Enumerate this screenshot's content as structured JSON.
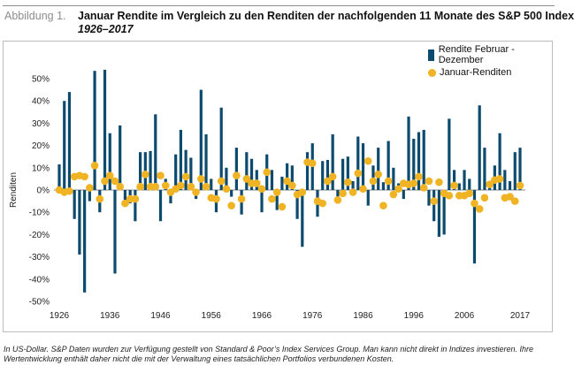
{
  "header": {
    "figure_label": "Abbildung 1.",
    "title": "Januar Rendite im Vergleich zu den Renditen der nachfolgenden 11 Monate des S&P 500 Index",
    "subtitle": "1926–2017"
  },
  "footnote": "In US-Dollar. S&P Daten wurden zur Verfügung gestellt von Standard & Poor’s Index Services Group. Man kann nicht direkt in Indizes investieren. Ihre Wertentwicklung enthält daher nicht die mit der Verwaltung eines tatsächlichen Portfolios verbundenen Kosten.",
  "colors": {
    "bars": "#0c4a6e",
    "dots": "#f0b323",
    "zero_line": "#8a8a8a"
  },
  "chart_data": {
    "type": "bar",
    "ylabel": "Renditen",
    "xlabel": "",
    "ylim": [
      -50,
      50
    ],
    "yticks": [
      "50%",
      "40%",
      "30%",
      "20%",
      "10%",
      "0%",
      "-10%",
      "-20%",
      "-30%",
      "-40%",
      "-50%"
    ],
    "xticks": [
      "1926",
      "1936",
      "1946",
      "1956",
      "1966",
      "1976",
      "1986",
      "1996",
      "2006",
      "2017"
    ],
    "legend_position": "top-right",
    "grid": false,
    "series": [
      {
        "name": "Rendite Februar - Dezember",
        "kind": "bar",
        "x": [
          1926,
          1927,
          1928,
          1929,
          1930,
          1931,
          1932,
          1933,
          1934,
          1935,
          1936,
          1937,
          1938,
          1939,
          1940,
          1941,
          1942,
          1943,
          1944,
          1945,
          1946,
          1947,
          1948,
          1949,
          1950,
          1951,
          1952,
          1953,
          1954,
          1955,
          1956,
          1957,
          1958,
          1959,
          1960,
          1961,
          1962,
          1963,
          1964,
          1965,
          1966,
          1967,
          1968,
          1969,
          1970,
          1971,
          1972,
          1973,
          1974,
          1975,
          1976,
          1977,
          1978,
          1979,
          1980,
          1981,
          1982,
          1983,
          1984,
          1985,
          1986,
          1987,
          1988,
          1989,
          1990,
          1991,
          1992,
          1993,
          1994,
          1995,
          1996,
          1997,
          1998,
          1999,
          2000,
          2001,
          2002,
          2003,
          2004,
          2005,
          2006,
          2007,
          2008,
          2009,
          2010,
          2011,
          2012,
          2013,
          2014,
          2015,
          2016,
          2017
        ],
        "values": [
          11.5,
          40,
          44,
          -13,
          -29,
          -46,
          -5,
          53.5,
          -10,
          54,
          25.5,
          -37.5,
          29,
          -5,
          -6,
          -14,
          17,
          17,
          17.5,
          34,
          -14,
          5,
          -6,
          16,
          27,
          18,
          14.5,
          -4,
          45,
          25,
          5,
          -10,
          37,
          10,
          -3,
          19,
          -11,
          17,
          14,
          9,
          -10,
          16,
          9,
          -9,
          6,
          12,
          11,
          -13,
          -25.5,
          17,
          21,
          -12,
          13,
          13.5,
          25,
          -6,
          14,
          15,
          4,
          24,
          21,
          -7,
          11,
          19,
          3.5,
          22,
          10,
          3,
          -4,
          33,
          23,
          26,
          27,
          -7,
          -14,
          -21,
          -20,
          32,
          9,
          3,
          9,
          5,
          -33,
          38,
          19,
          1,
          11,
          25.5,
          9,
          4,
          17,
          19
        ]
      },
      {
        "name": "Januar-Renditen",
        "kind": "dot",
        "x": [
          1926,
          1927,
          1928,
          1929,
          1930,
          1931,
          1932,
          1933,
          1934,
          1935,
          1936,
          1937,
          1938,
          1939,
          1940,
          1941,
          1942,
          1943,
          1944,
          1945,
          1946,
          1947,
          1948,
          1949,
          1950,
          1951,
          1952,
          1953,
          1954,
          1955,
          1956,
          1957,
          1958,
          1959,
          1960,
          1961,
          1962,
          1963,
          1964,
          1965,
          1966,
          1967,
          1968,
          1969,
          1970,
          1971,
          1972,
          1973,
          1974,
          1975,
          1976,
          1977,
          1978,
          1979,
          1980,
          1981,
          1982,
          1983,
          1984,
          1985,
          1986,
          1987,
          1988,
          1989,
          1990,
          1991,
          1992,
          1993,
          1994,
          1995,
          1996,
          1997,
          1998,
          1999,
          2000,
          2001,
          2002,
          2003,
          2004,
          2005,
          2006,
          2007,
          2008,
          2009,
          2010,
          2011,
          2012,
          2013,
          2014,
          2015,
          2016,
          2017
        ],
        "values": [
          0,
          -1,
          -0.5,
          6,
          6.5,
          6,
          1,
          11,
          -4,
          4,
          6.5,
          4,
          1.5,
          -6,
          -4,
          -4,
          1.5,
          7,
          1.5,
          1.5,
          6.5,
          2,
          -1,
          0.5,
          2,
          6,
          1.5,
          -1,
          5,
          1.5,
          -3.5,
          -4,
          4,
          0.5,
          -7,
          6.5,
          -4,
          5,
          3,
          3,
          0.5,
          8,
          -4,
          -1,
          -7.5,
          4,
          2,
          -2,
          -1,
          12.5,
          12,
          -5,
          -6,
          4,
          6,
          -4.5,
          -1.5,
          3.5,
          -1,
          7.5,
          0.5,
          13,
          4,
          7,
          -7,
          4,
          -2,
          0.5,
          3,
          2.5,
          3,
          6,
          1,
          4,
          -5,
          3.5,
          -1.5,
          -2.5,
          2,
          -2.5,
          -2.5,
          -1.5,
          -6,
          -8.5,
          -3.5,
          2.5,
          4.5,
          5,
          -3.5,
          -3,
          -5,
          2
        ]
      }
    ]
  }
}
